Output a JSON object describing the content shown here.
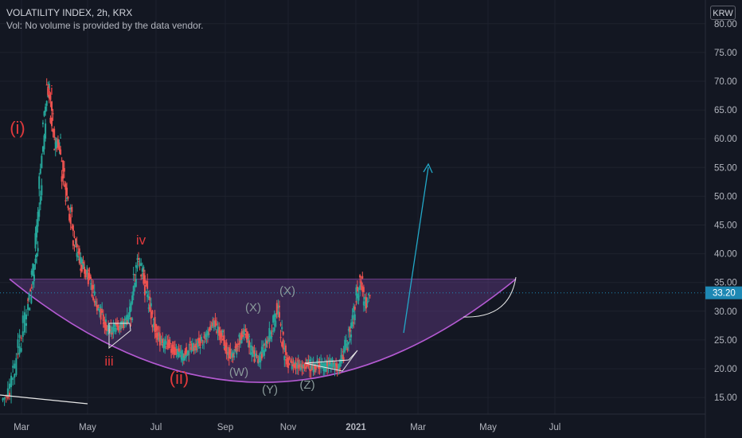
{
  "header": {
    "title": "VOLATILITY INDEX, 2h, KRX",
    "volume_note": "Vol: No volume is provided by the data vendor.",
    "currency": "KRW"
  },
  "colors": {
    "background": "#131722",
    "grid": "#1e222d",
    "up": "#26a69a",
    "down": "#ef5350",
    "fill": "#6a3d8e",
    "curve": "#b45ad2",
    "arrow": "#22a8c8",
    "label_red": "#e0393c",
    "label_gray": "#8a9a9a",
    "price_tag": "#1e88b4"
  },
  "chart_data": {
    "type": "candlestick",
    "title": "VOLATILITY INDEX, 2h, KRX",
    "ylim": [
      13,
      81
    ],
    "y_ticks": [
      "15.00",
      "20.00",
      "25.00",
      "30.00",
      "35.00",
      "40.00",
      "45.00",
      "50.00",
      "55.00",
      "60.00",
      "65.00",
      "70.00",
      "75.00",
      "80.00"
    ],
    "x_ticks": [
      "Mar",
      "May",
      "Jul",
      "Sep",
      "Nov",
      "2021",
      "Mar",
      "May",
      "Jul"
    ],
    "last_price": "33.20",
    "grid": true,
    "series": [
      {
        "kind": "close_path",
        "points": [
          [
            0.0,
            14.5
          ],
          [
            0.4,
            16
          ],
          [
            0.8,
            20
          ],
          [
            1.2,
            24
          ],
          [
            1.6,
            28
          ],
          [
            2.0,
            32
          ],
          [
            2.3,
            36
          ],
          [
            2.6,
            41
          ],
          [
            2.9,
            52
          ],
          [
            3.2,
            62
          ],
          [
            3.5,
            70
          ],
          [
            3.8,
            64
          ],
          [
            4.1,
            58
          ],
          [
            4.4,
            60
          ],
          [
            4.7,
            54
          ],
          [
            5.0,
            50
          ],
          [
            5.3,
            47
          ],
          [
            5.6,
            42
          ],
          [
            5.9,
            40
          ],
          [
            6.2,
            38
          ],
          [
            6.5,
            37
          ],
          [
            6.8,
            36
          ],
          [
            7.1,
            33
          ],
          [
            7.4,
            31
          ],
          [
            7.7,
            30
          ],
          [
            8.0,
            28
          ],
          [
            8.3,
            27
          ],
          [
            8.6,
            26.5
          ],
          [
            8.9,
            27.5
          ],
          [
            9.2,
            27
          ],
          [
            9.5,
            28
          ],
          [
            9.8,
            28.5
          ],
          [
            10.1,
            29
          ],
          [
            10.4,
            36
          ],
          [
            10.7,
            39
          ],
          [
            11.0,
            37
          ],
          [
            11.3,
            34
          ],
          [
            11.6,
            31
          ],
          [
            11.9,
            28
          ],
          [
            12.2,
            26
          ],
          [
            12.5,
            25
          ],
          [
            12.8,
            24
          ],
          [
            13.1,
            24.5
          ],
          [
            13.4,
            23.5
          ],
          [
            13.7,
            23
          ],
          [
            14.0,
            22.5
          ],
          [
            14.3,
            22
          ],
          [
            14.6,
            23
          ],
          [
            14.9,
            24
          ],
          [
            15.2,
            23.5
          ],
          [
            15.5,
            24.5
          ],
          [
            15.8,
            25
          ],
          [
            16.1,
            26
          ],
          [
            16.4,
            27
          ],
          [
            16.7,
            28
          ],
          [
            17.0,
            27
          ],
          [
            17.3,
            26
          ],
          [
            17.6,
            24
          ],
          [
            17.9,
            22.5
          ],
          [
            18.2,
            22
          ],
          [
            18.5,
            23.5
          ],
          [
            18.8,
            25.5
          ],
          [
            19.1,
            26.5
          ],
          [
            19.4,
            25
          ],
          [
            19.7,
            23
          ],
          [
            20.0,
            22
          ],
          [
            20.3,
            21.5
          ],
          [
            20.6,
            23
          ],
          [
            20.9,
            24.5
          ],
          [
            21.2,
            26
          ],
          [
            21.5,
            28
          ],
          [
            21.8,
            31
          ],
          [
            22.1,
            26
          ],
          [
            22.4,
            22
          ],
          [
            22.7,
            21
          ],
          [
            23.0,
            20.5
          ],
          [
            23.3,
            21
          ],
          [
            23.6,
            20
          ],
          [
            23.9,
            20.5
          ],
          [
            24.2,
            21
          ],
          [
            24.5,
            20
          ],
          [
            24.8,
            20.5
          ],
          [
            25.1,
            21
          ],
          [
            25.4,
            20
          ],
          [
            25.7,
            20.5
          ],
          [
            26.0,
            21
          ],
          [
            26.3,
            20.5
          ],
          [
            26.6,
            20
          ],
          [
            26.9,
            22
          ],
          [
            27.2,
            24
          ],
          [
            27.5,
            26
          ],
          [
            27.8,
            29
          ],
          [
            28.1,
            33
          ],
          [
            28.4,
            36
          ],
          [
            28.7,
            31
          ],
          [
            29.0,
            33.2
          ]
        ]
      }
    ],
    "annotations": {
      "red_waves": [
        "(i)",
        "ii",
        "iii",
        "iv",
        "(ii)"
      ],
      "gray_waves": [
        "(X)",
        "(X)",
        "(W)",
        "(Y)",
        "(Z)"
      ]
    }
  }
}
